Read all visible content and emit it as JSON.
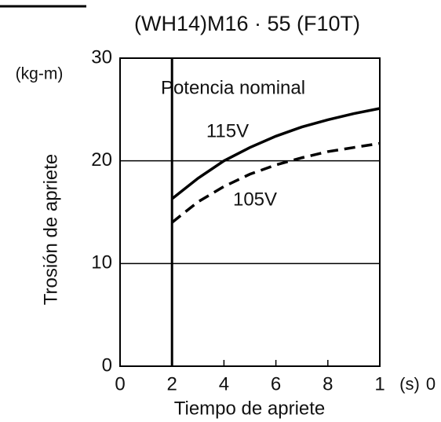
{
  "chart_data": {
    "type": "line",
    "title": "(WH14)M16 · 55 (F10T)",
    "y_unit": "(kg-m)",
    "ylabel": "Trosión de apriete",
    "xlabel": "Tiempo de apriete",
    "x_unit": "(s)",
    "x_label_fragment": "0",
    "annotation": "Potencia nominal",
    "x": [
      2,
      3,
      4,
      5,
      6,
      7,
      8,
      9,
      10
    ],
    "series": [
      {
        "name": "115V",
        "color": "#000000",
        "dash": false,
        "values": [
          16.3,
          18.3,
          20,
          21.3,
          22.4,
          23.3,
          24,
          24.6,
          25.1
        ]
      },
      {
        "name": "105V",
        "color": "#000000",
        "dash": true,
        "values": [
          14,
          16,
          17.5,
          18.7,
          19.6,
          20.3,
          20.9,
          21.3,
          21.7
        ]
      }
    ],
    "xlim": [
      0,
      10
    ],
    "xticks": [
      0,
      2,
      4,
      6,
      8,
      {
        "value": 10,
        "label": "1"
      }
    ],
    "ylim": [
      0,
      30
    ],
    "yticks": [
      0,
      10,
      20,
      30
    ],
    "grid": true,
    "start_line": 2
  }
}
